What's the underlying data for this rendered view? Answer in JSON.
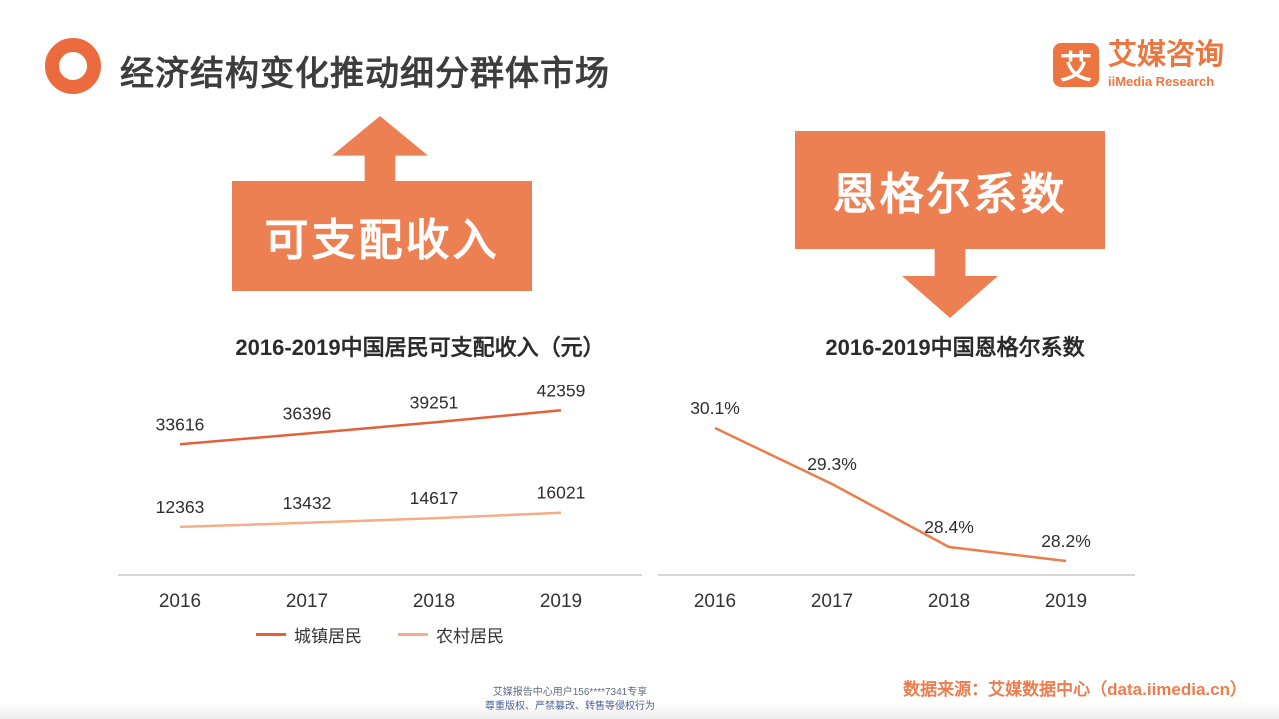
{
  "page": {
    "title": "经济结构变化推动细分群体市场",
    "brand": {
      "mark": "艾",
      "name": "艾媒咨询",
      "subname": "iiMedia Research"
    },
    "accent_color": "#ed7d4e"
  },
  "callouts": {
    "income": {
      "label": "可支配收入",
      "arrow": "up"
    },
    "engel": {
      "label": "恩格尔系数",
      "arrow": "down"
    }
  },
  "chart_data": [
    {
      "type": "line",
      "title": "2016-2019中国居民可支配收入（元）",
      "categories": [
        "2016",
        "2017",
        "2018",
        "2019"
      ],
      "series": [
        {
          "name": "城镇居民",
          "values": [
            33616,
            36396,
            39251,
            42359
          ],
          "color": "#e2603a"
        },
        {
          "name": "农村居民",
          "values": [
            12363,
            13432,
            14617,
            16021
          ],
          "color": "#f4ad85"
        }
      ],
      "ylim": [
        0,
        45000
      ],
      "grid": false,
      "legend_position": "bottom",
      "value_labels": true
    },
    {
      "type": "line",
      "title": "2016-2019中国恩格尔系数",
      "categories": [
        "2016",
        "2017",
        "2018",
        "2019"
      ],
      "series": [
        {
          "name": "恩格尔系数",
          "values": [
            30.1,
            29.3,
            28.4,
            28.2
          ],
          "color": "#ec7c4b",
          "suffix": "%"
        }
      ],
      "ylim": [
        28,
        30.5
      ],
      "grid": false,
      "legend_position": "none",
      "value_labels": true
    }
  ],
  "footer": {
    "source": "数据来源：艾媒数据中心（data.iimedia.cn）",
    "watermark": [
      "艾媒报告中心用户156****7341专享",
      "尊重版权、严禁篡改、转售等侵权行为"
    ]
  }
}
